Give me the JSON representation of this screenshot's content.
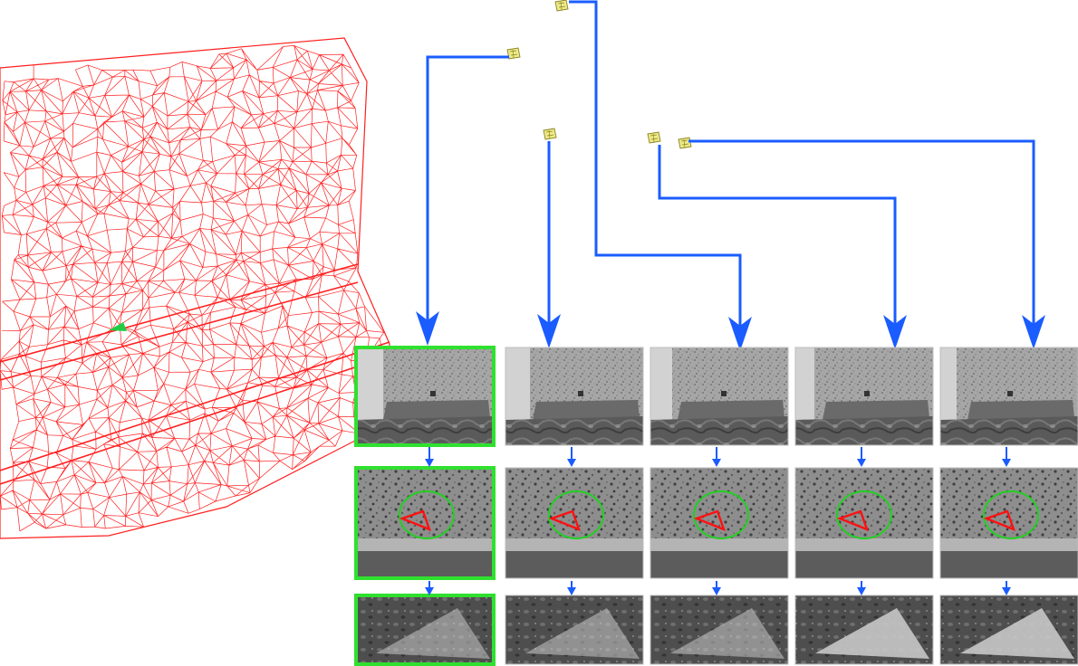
{
  "colors": {
    "mesh": "#ff2020",
    "arrow": "#1a5cff",
    "selected": "#2fe02f",
    "camera": "#c8c040",
    "patch": "#ff1010",
    "circle": "#22d022"
  },
  "views": [
    {
      "id": "view-1",
      "selected": true
    },
    {
      "id": "view-2",
      "selected": false
    },
    {
      "id": "view-3",
      "selected": false
    },
    {
      "id": "view-4",
      "selected": false
    },
    {
      "id": "view-5",
      "selected": false
    }
  ],
  "icons": {
    "camera": "camera-icon",
    "arrow": "arrow-down-icon",
    "mesh": "wireframe-mesh"
  }
}
